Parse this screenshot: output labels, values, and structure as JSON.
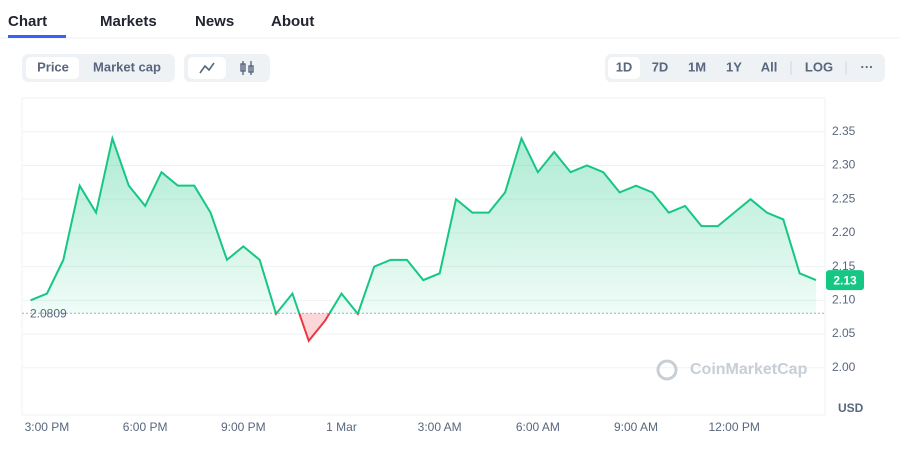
{
  "tabs": [
    "Chart",
    "Markets",
    "News",
    "About"
  ],
  "toggles": [
    "Price",
    "Market cap"
  ],
  "ranges": [
    "1D",
    "7D",
    "1M",
    "1Y",
    "All",
    "LOG",
    "···"
  ],
  "chart_data": {
    "type": "line",
    "categories": [
      null,
      "3:00 PM",
      null,
      null,
      null,
      null,
      null,
      "6:00 PM",
      null,
      null,
      null,
      null,
      null,
      "9:00 PM",
      null,
      null,
      null,
      null,
      null,
      "1 Mar",
      null,
      null,
      null,
      null,
      null,
      "3:00 AM",
      null,
      null,
      null,
      null,
      null,
      "6:00 AM",
      null,
      null,
      null,
      null,
      null,
      "9:00 AM",
      null,
      null,
      null,
      null,
      null,
      "12:00 PM",
      null,
      null,
      null,
      null,
      null
    ],
    "series": [
      {
        "name": "Price",
        "color": "#16c784",
        "down_color": "#ea3943",
        "values": [
          2.1,
          2.11,
          2.16,
          2.27,
          2.23,
          2.34,
          2.27,
          2.24,
          2.29,
          2.27,
          2.27,
          2.23,
          2.16,
          2.18,
          2.16,
          2.08,
          2.11,
          2.04,
          2.07,
          2.11,
          2.08,
          2.15,
          2.16,
          2.16,
          2.13,
          2.14,
          2.25,
          2.23,
          2.23,
          2.26,
          2.34,
          2.29,
          2.32,
          2.29,
          2.3,
          2.29,
          2.26,
          2.27,
          2.26,
          2.23,
          2.24,
          2.21,
          2.21,
          2.23,
          2.25,
          2.23,
          2.22,
          2.14,
          2.13
        ],
        "last_label": "2.13"
      }
    ],
    "reference": {
      "value": 2.0809,
      "label": "2.0809"
    },
    "ylim": [
      1.93,
      2.4
    ],
    "yticks": [
      {
        "value": 2.0,
        "label": "2.00"
      },
      2.05,
      {
        "value": 2.1,
        "label": "2.10"
      },
      2.15,
      {
        "value": 2.2,
        "label": "2.20"
      },
      2.25,
      {
        "value": 2.3,
        "label": "2.30"
      },
      2.35
    ],
    "y_unit": "USD",
    "watermark": "CoinMarketCap",
    "grid": true
  }
}
